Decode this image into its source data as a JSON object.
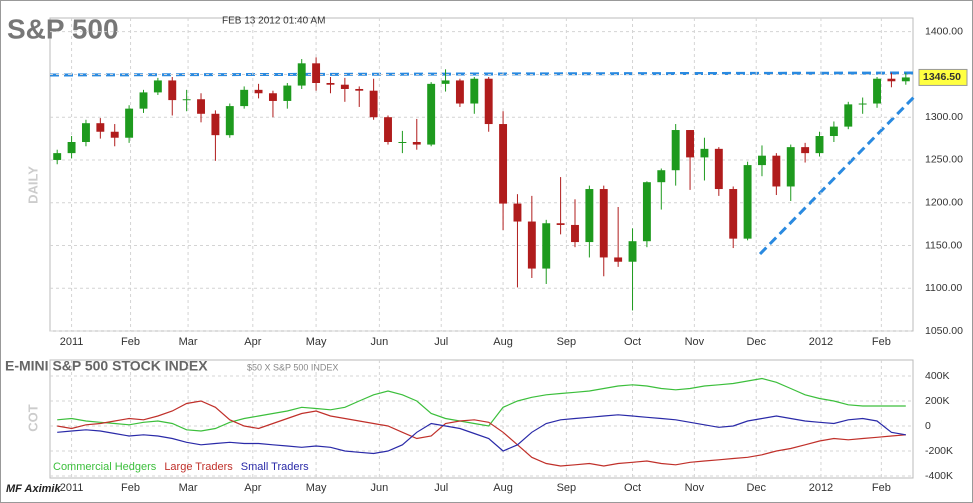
{
  "chart_data": [
    {
      "type": "candlestick",
      "title": "S&P 500",
      "subtitle": "FEB 13 2012 01:40 AM",
      "y_label": "DAILY",
      "x": [
        0,
        1,
        2,
        3,
        4,
        5,
        6,
        7,
        8,
        9,
        10,
        11,
        12,
        13,
        14,
        15,
        16,
        17,
        18,
        19,
        20,
        21,
        22,
        23,
        24,
        25,
        26,
        27,
        28,
        29,
        30,
        31,
        32,
        33,
        34,
        35,
        36,
        37,
        38,
        39,
        40,
        41,
        42,
        43,
        44,
        45,
        46,
        47,
        48,
        49,
        50,
        51,
        52,
        53,
        54,
        55,
        56,
        57,
        58,
        59
      ],
      "open": [
        1250,
        1258,
        1271,
        1293,
        1283,
        1276,
        1310,
        1329,
        1343,
        1320,
        1321,
        1304,
        1279,
        1313,
        1332,
        1328,
        1319,
        1337,
        1363,
        1340,
        1338,
        1333,
        1331,
        1300,
        1271,
        1271,
        1268,
        1339,
        1343,
        1316,
        1345,
        1292,
        1199,
        1178,
        1123,
        1176,
        1174,
        1154,
        1216,
        1136,
        1131,
        1155,
        1224,
        1238,
        1285,
        1253,
        1263,
        1216,
        1158,
        1244,
        1255,
        1219,
        1265,
        1258,
        1278,
        1289,
        1315,
        1316,
        1345,
        1342
      ],
      "high": [
        1262,
        1278,
        1297,
        1299,
        1292,
        1314,
        1332,
        1346,
        1347,
        1332,
        1328,
        1308,
        1316,
        1336,
        1339,
        1331,
        1340,
        1368,
        1370,
        1347,
        1346,
        1336,
        1345,
        1302,
        1284,
        1298,
        1341,
        1356,
        1345,
        1347,
        1347,
        1307,
        1210,
        1208,
        1180,
        1230,
        1204,
        1220,
        1220,
        1195,
        1170,
        1225,
        1240,
        1292,
        1285,
        1276,
        1265,
        1219,
        1248,
        1267,
        1258,
        1268,
        1270,
        1283,
        1295,
        1318,
        1323,
        1347,
        1352,
        1352
      ],
      "low": [
        1245,
        1252,
        1266,
        1275,
        1266,
        1270,
        1305,
        1326,
        1302,
        1307,
        1294,
        1249,
        1276,
        1310,
        1322,
        1300,
        1310,
        1333,
        1331,
        1328,
        1318,
        1312,
        1297,
        1268,
        1258,
        1262,
        1266,
        1330,
        1312,
        1304,
        1283,
        1168,
        1101,
        1112,
        1105,
        1163,
        1148,
        1136,
        1114,
        1125,
        1074,
        1148,
        1192,
        1220,
        1215,
        1226,
        1208,
        1147,
        1156,
        1231,
        1209,
        1202,
        1247,
        1254,
        1271,
        1286,
        1304,
        1311,
        1335,
        1338
      ],
      "close": [
        1258,
        1271,
        1293,
        1283,
        1276,
        1310,
        1329,
        1343,
        1320,
        1321,
        1304,
        1279,
        1313,
        1332,
        1328,
        1319,
        1337,
        1363,
        1340,
        1338,
        1333,
        1331,
        1300,
        1271,
        1271,
        1268,
        1339,
        1343,
        1316,
        1345,
        1292,
        1199,
        1178,
        1123,
        1176,
        1174,
        1154,
        1216,
        1136,
        1131,
        1155,
        1224,
        1238,
        1285,
        1253,
        1263,
        1216,
        1158,
        1244,
        1255,
        1219,
        1265,
        1258,
        1278,
        1289,
        1315,
        1316,
        1345,
        1342,
        1346.5
      ],
      "last_price": {
        "value": 1346.5,
        "label": "1346.50"
      },
      "up_color": "#1e9a1e",
      "down_color": "#b01c1c",
      "xlim": [
        -0.5,
        59.5
      ],
      "xticks": [
        {
          "value": 1,
          "label": "2011"
        },
        {
          "value": 5.1,
          "label": "Feb"
        },
        {
          "value": 9.1,
          "label": "Mar"
        },
        {
          "value": 13.6,
          "label": "Apr"
        },
        {
          "value": 18,
          "label": "May"
        },
        {
          "value": 22.4,
          "label": "Jun"
        },
        {
          "value": 26.7,
          "label": "Jul"
        },
        {
          "value": 31,
          "label": "Aug"
        },
        {
          "value": 35.4,
          "label": "Sep"
        },
        {
          "value": 40,
          "label": "Oct"
        },
        {
          "value": 44.3,
          "label": "Nov"
        },
        {
          "value": 48.6,
          "label": "Dec"
        },
        {
          "value": 53.1,
          "label": "2012"
        },
        {
          "value": 57.3,
          "label": "Feb"
        }
      ],
      "ylim": [
        1050,
        1416
      ],
      "yticks": [
        {
          "value": 1050,
          "label": "1050.00"
        },
        {
          "value": 1100,
          "label": "1100.00"
        },
        {
          "value": 1150,
          "label": "1150.00"
        },
        {
          "value": 1200,
          "label": "1200.00"
        },
        {
          "value": 1250,
          "label": "1250.00"
        },
        {
          "value": 1300,
          "label": "1300.00"
        },
        {
          "value": 1350,
          "label": "1350.00"
        },
        {
          "value": 1400,
          "label": "1400.00"
        }
      ],
      "grid": true
    },
    {
      "type": "line",
      "title": "E-MINI S&P 500 STOCK INDEX",
      "subtitle": "$50 X S&P 500 INDEX",
      "y_label": "COT",
      "watermark": "MF Aximik",
      "x": [
        0,
        1,
        2,
        3,
        4,
        5,
        6,
        7,
        8,
        9,
        10,
        11,
        12,
        13,
        14,
        15,
        16,
        17,
        18,
        19,
        20,
        21,
        22,
        23,
        24,
        25,
        26,
        27,
        28,
        29,
        30,
        31,
        32,
        33,
        34,
        35,
        36,
        37,
        38,
        39,
        40,
        41,
        42,
        43,
        44,
        45,
        46,
        47,
        48,
        49,
        50,
        51,
        52,
        53,
        54,
        55,
        56,
        57,
        58,
        59
      ],
      "series": [
        {
          "name": "Commercial Hedgers",
          "color": "#3cbf3c",
          "values": [
            50000,
            60000,
            40000,
            30000,
            20000,
            10000,
            30000,
            40000,
            20000,
            -30000,
            -40000,
            -20000,
            30000,
            60000,
            80000,
            100000,
            120000,
            150000,
            140000,
            130000,
            150000,
            200000,
            250000,
            280000,
            250000,
            200000,
            100000,
            60000,
            40000,
            20000,
            0,
            150000,
            200000,
            230000,
            250000,
            260000,
            270000,
            280000,
            300000,
            320000,
            330000,
            320000,
            300000,
            290000,
            300000,
            320000,
            330000,
            340000,
            360000,
            380000,
            350000,
            300000,
            250000,
            220000,
            200000,
            170000,
            160000,
            160000,
            160000,
            160000
          ]
        },
        {
          "name": "Large Traders",
          "color": "#c0302a",
          "values": [
            0,
            -20000,
            10000,
            20000,
            40000,
            60000,
            50000,
            80000,
            120000,
            180000,
            200000,
            150000,
            50000,
            0,
            -20000,
            20000,
            60000,
            100000,
            120000,
            80000,
            60000,
            40000,
            20000,
            0,
            -50000,
            -100000,
            -80000,
            20000,
            40000,
            50000,
            30000,
            -50000,
            -150000,
            -250000,
            -300000,
            -320000,
            -310000,
            -300000,
            -320000,
            -300000,
            -290000,
            -280000,
            -300000,
            -310000,
            -290000,
            -280000,
            -270000,
            -260000,
            -250000,
            -230000,
            -200000,
            -180000,
            -150000,
            -120000,
            -100000,
            -110000,
            -100000,
            -90000,
            -80000,
            -70000
          ]
        },
        {
          "name": "Small Traders",
          "color": "#2a2aa8",
          "values": [
            -50000,
            -40000,
            -30000,
            -40000,
            -60000,
            -80000,
            -70000,
            -80000,
            -100000,
            -130000,
            -150000,
            -140000,
            -130000,
            -140000,
            -140000,
            -150000,
            -160000,
            -170000,
            -160000,
            -170000,
            -200000,
            -210000,
            -220000,
            -200000,
            -150000,
            -50000,
            20000,
            0,
            -20000,
            -60000,
            -100000,
            -200000,
            -150000,
            -50000,
            20000,
            50000,
            60000,
            70000,
            80000,
            90000,
            80000,
            70000,
            60000,
            50000,
            30000,
            10000,
            -10000,
            0,
            40000,
            60000,
            80000,
            60000,
            40000,
            30000,
            20000,
            50000,
            60000,
            40000,
            -50000,
            -70000
          ]
        }
      ],
      "xlim": [
        -0.5,
        59.5
      ],
      "xticks": [
        {
          "value": 1,
          "label": "2011"
        },
        {
          "value": 5.1,
          "label": "Feb"
        },
        {
          "value": 9.1,
          "label": "Mar"
        },
        {
          "value": 13.6,
          "label": "Apr"
        },
        {
          "value": 18,
          "label": "May"
        },
        {
          "value": 22.4,
          "label": "Jun"
        },
        {
          "value": 26.7,
          "label": "Jul"
        },
        {
          "value": 31,
          "label": "Aug"
        },
        {
          "value": 35.4,
          "label": "Sep"
        },
        {
          "value": 40,
          "label": "Oct"
        },
        {
          "value": 44.3,
          "label": "Nov"
        },
        {
          "value": 48.6,
          "label": "Dec"
        },
        {
          "value": 53.1,
          "label": "2012"
        },
        {
          "value": 57.3,
          "label": "Feb"
        }
      ],
      "ylim": [
        -400000,
        400000
      ],
      "yticks": [
        {
          "value": -400000,
          "label": "-400K"
        },
        {
          "value": -200000,
          "label": "-200K"
        },
        0,
        {
          "value": 200000,
          "label": "200K"
        },
        {
          "value": 400000,
          "label": "400K"
        }
      ],
      "grid": true
    }
  ]
}
